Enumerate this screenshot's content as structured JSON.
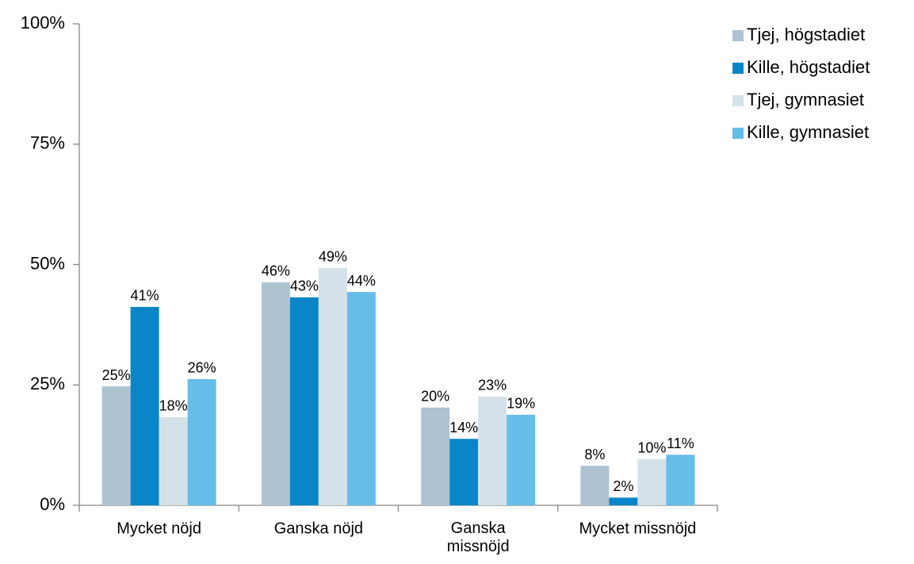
{
  "chart_data": {
    "type": "bar",
    "categories": [
      "Mycket nöjd",
      "Ganska nöjd",
      "Ganska\nmissnöjd",
      "Mycket missnöjd"
    ],
    "series": [
      {
        "name": "Tjej, högstadiet",
        "color": "#adc3d1",
        "values": [
          24.7,
          46.3,
          20.3,
          8.2
        ],
        "value_labels": [
          "25%",
          "46%",
          "20%",
          "8%"
        ]
      },
      {
        "name": "Kille, högstadiet",
        "color": "#0a86c8",
        "values": [
          41.2,
          43.2,
          13.8,
          1.6
        ],
        "value_labels": [
          "41%",
          "43%",
          "14%",
          "2%"
        ]
      },
      {
        "name": "Tjej, gymnasiet",
        "color": "#d5e1e8",
        "values": [
          18.3,
          49.3,
          22.6,
          9.6
        ],
        "value_labels": [
          "18%",
          "49%",
          "23%",
          "10%"
        ]
      },
      {
        "name": "Kille, gymnasiet",
        "color": "#66bde9",
        "values": [
          26.2,
          44.3,
          18.8,
          10.5
        ],
        "value_labels": [
          "26%",
          "44%",
          "19%",
          "11%"
        ]
      }
    ],
    "ylim": [
      0,
      100
    ],
    "yticks": [
      {
        "value": 0,
        "label": "0%"
      },
      {
        "value": 25,
        "label": "25%"
      },
      {
        "value": 50,
        "label": "50%"
      },
      {
        "value": 75,
        "label": "75%"
      },
      {
        "value": 100,
        "label": "100%"
      }
    ],
    "legend": "top-right"
  }
}
